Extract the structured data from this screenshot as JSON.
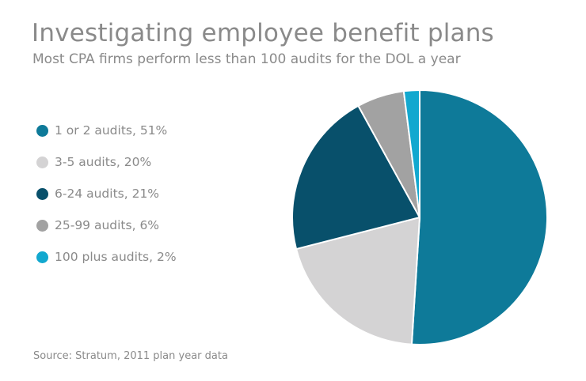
{
  "chart_data": {
    "type": "pie",
    "title": "Investigating employee benefit plans",
    "subtitle": "Most CPA firms perform less than 100 audits for the DOL a year",
    "source": "Source: Stratum, 2011 plan year data",
    "legend_position": "left",
    "slices": [
      {
        "label": "1 or 2 audits, 51%",
        "value": 51,
        "color": "#0e7a99"
      },
      {
        "label": "3-5 audits, 20%",
        "value": 20,
        "color": "#d4d3d4"
      },
      {
        "label": "6-24 audits, 21%",
        "value": 21,
        "color": "#08506b"
      },
      {
        "label": "25-99 audits, 6%",
        "value": 6,
        "color": "#a2a2a2"
      },
      {
        "label": "100 plus audits, 2%",
        "value": 2,
        "color": "#12a8cf"
      }
    ]
  }
}
